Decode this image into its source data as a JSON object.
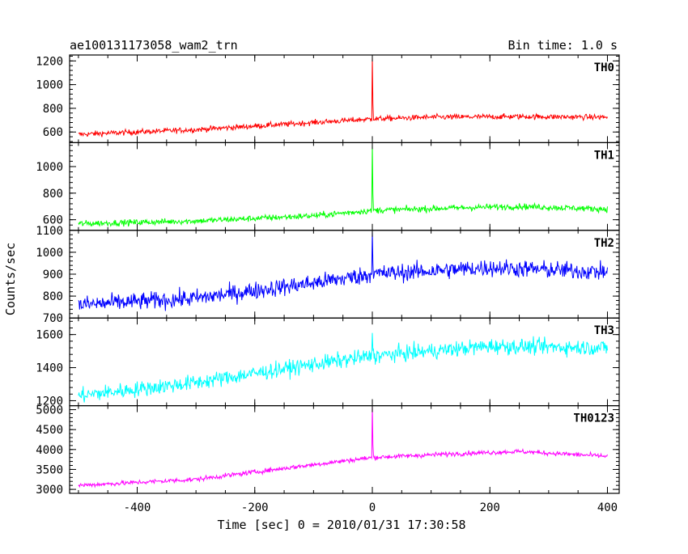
{
  "header": {
    "title": "ae100131173058_wam2_trn",
    "bin_time": "Bin time: 1.0 s"
  },
  "chart_data": {
    "type": "line",
    "xlabel": "Time [sec] 0 = 2010/01/31 17:30:58",
    "ylabel": "Counts/sec",
    "xlim": [
      -515,
      420
    ],
    "x_ticks": [
      -400,
      -200,
      0,
      200,
      400
    ],
    "grid": false,
    "panels": [
      {
        "name": "TH0",
        "color": "#ff0000",
        "ylim": [
          510,
          1250
        ],
        "y_ticks": [
          600,
          800,
          1000,
          1200
        ],
        "baseline": [
          [
            -500,
            580
          ],
          [
            -300,
            620
          ],
          [
            -100,
            680
          ],
          [
            0,
            710
          ],
          [
            100,
            725
          ],
          [
            250,
            730
          ],
          [
            400,
            725
          ]
        ],
        "noise": 22,
        "peak": [
          0,
          1240
        ]
      },
      {
        "name": "TH1",
        "color": "#00ff00",
        "ylim": [
          520,
          1180
        ],
        "y_ticks": [
          600,
          800,
          1000
        ],
        "baseline": [
          [
            -500,
            570
          ],
          [
            -300,
            590
          ],
          [
            -100,
            630
          ],
          [
            0,
            670
          ],
          [
            150,
            690
          ],
          [
            250,
            700
          ],
          [
            400,
            680
          ]
        ],
        "noise": 22,
        "peak": [
          0,
          1170
        ]
      },
      {
        "name": "TH2",
        "color": "#0000ff",
        "ylim": [
          700,
          1100
        ],
        "y_ticks": [
          700,
          800,
          900,
          1000,
          1100
        ],
        "baseline": [
          [
            -500,
            760
          ],
          [
            -300,
            790
          ],
          [
            -100,
            860
          ],
          [
            0,
            900
          ],
          [
            200,
            930
          ],
          [
            400,
            910
          ]
        ],
        "noise": 38,
        "peak": [
          0,
          1100
        ]
      },
      {
        "name": "TH3",
        "color": "#00ffff",
        "ylim": [
          1170,
          1700
        ],
        "y_ticks": [
          1200,
          1400,
          1600
        ],
        "baseline": [
          [
            -500,
            1230
          ],
          [
            -300,
            1310
          ],
          [
            -100,
            1420
          ],
          [
            0,
            1470
          ],
          [
            200,
            1530
          ],
          [
            400,
            1520
          ]
        ],
        "noise": 45,
        "peak": [
          0,
          1610
        ]
      },
      {
        "name": "TH0123",
        "color": "#ff00ff",
        "ylim": [
          2900,
          5100
        ],
        "y_ticks": [
          3000,
          3500,
          4000,
          4500,
          5000
        ],
        "baseline": [
          [
            -500,
            3100
          ],
          [
            -300,
            3250
          ],
          [
            -100,
            3620
          ],
          [
            0,
            3800
          ],
          [
            150,
            3900
          ],
          [
            250,
            3950
          ],
          [
            400,
            3830
          ]
        ],
        "noise": 55,
        "peak": [
          0,
          5100
        ]
      }
    ]
  }
}
